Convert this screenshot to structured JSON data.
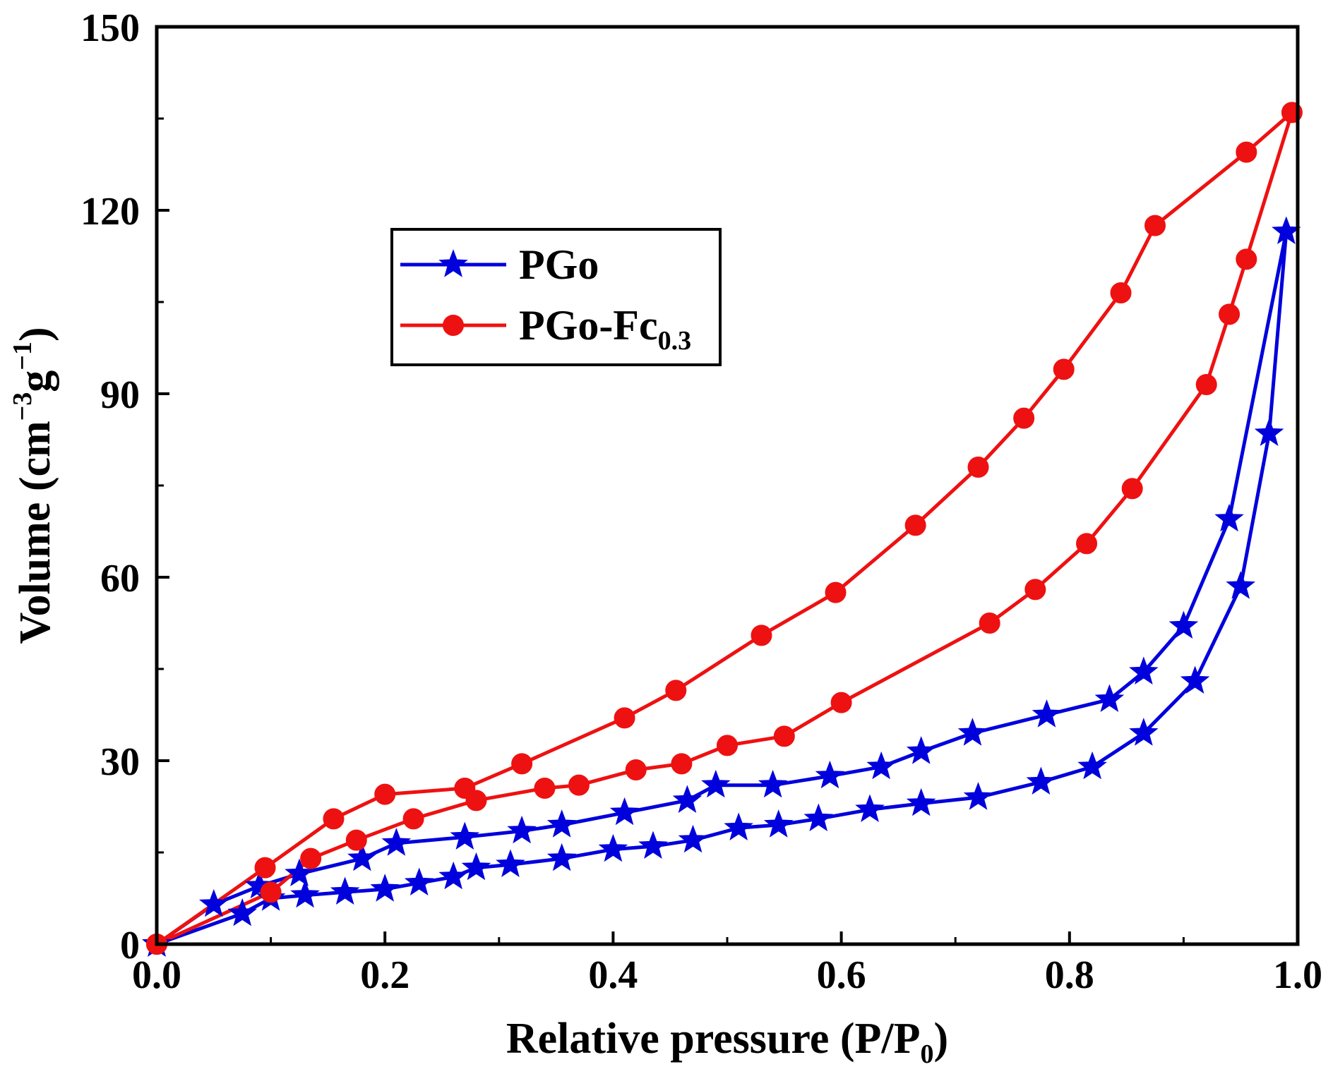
{
  "chart_data": {
    "type": "line",
    "title": "",
    "xlabel": "Relative pressure (P/P",
    "xlabel_sub": "0",
    "xlabel_end": ")",
    "ylabel": "Volume (cm",
    "ylabel_sup1": "−3",
    "ylabel_mid": "g",
    "ylabel_sup2": "−1",
    "ylabel_end": ")",
    "xlim": [
      0.0,
      1.0
    ],
    "ylim": [
      0,
      150
    ],
    "xticks": [
      "0.0",
      "0.2",
      "0.4",
      "0.6",
      "0.8",
      "1.0"
    ],
    "yticks": [
      "0",
      "30",
      "60",
      "90",
      "120",
      "150"
    ],
    "legend_position": "upper-left",
    "series": [
      {
        "name": "PGo",
        "name_sub": "",
        "color": "#0000dd",
        "marker": "star",
        "x": [
          0.0,
          0.075,
          0.1,
          0.13,
          0.165,
          0.2,
          0.23,
          0.26,
          0.28,
          0.31,
          0.355,
          0.4,
          0.435,
          0.47,
          0.51,
          0.545,
          0.58,
          0.625,
          0.67,
          0.72,
          0.775,
          0.82,
          0.865,
          0.91,
          0.95,
          0.975,
          0.99,
          0.94,
          0.9,
          0.865,
          0.835,
          0.78,
          0.715,
          0.67,
          0.635,
          0.59,
          0.54,
          0.49,
          0.465,
          0.41,
          0.355,
          0.32,
          0.27,
          0.21,
          0.18,
          0.125,
          0.09,
          0.05,
          0.0
        ],
        "y": [
          0,
          5,
          7.5,
          8,
          8.5,
          9,
          10,
          11,
          12.5,
          13,
          14,
          15.5,
          16,
          17,
          19,
          19.5,
          20.5,
          22,
          23,
          24,
          26.5,
          29,
          34.5,
          43,
          58.5,
          83.5,
          116.5,
          69.5,
          52,
          44.5,
          40,
          37.5,
          34.5,
          31.5,
          29,
          27.5,
          26,
          26,
          23.5,
          21.5,
          19.5,
          18.5,
          17.5,
          16.5,
          14,
          11.5,
          9.5,
          6.5,
          0
        ]
      },
      {
        "name": "PGo-Fc",
        "name_sub": "0.3",
        "color": "#ee1111",
        "marker": "circle",
        "x": [
          0.0,
          0.1,
          0.135,
          0.175,
          0.225,
          0.28,
          0.34,
          0.37,
          0.42,
          0.46,
          0.5,
          0.55,
          0.6,
          0.73,
          0.77,
          0.815,
          0.855,
          0.92,
          0.94,
          0.955,
          0.995,
          0.955,
          0.875,
          0.845,
          0.795,
          0.76,
          0.72,
          0.665,
          0.595,
          0.53,
          0.455,
          0.41,
          0.32,
          0.27,
          0.2,
          0.155,
          0.095,
          0.0
        ],
        "y": [
          0,
          8.5,
          14,
          17,
          20.5,
          23.5,
          25.5,
          26,
          28.5,
          29.5,
          32.5,
          34,
          39.5,
          52.5,
          58,
          65.5,
          74.5,
          91.5,
          103,
          112,
          136,
          129.5,
          117.5,
          106.5,
          94,
          86,
          78,
          68.5,
          57.5,
          50.5,
          41.5,
          37,
          29.5,
          25.5,
          24.5,
          20.5,
          12.5,
          0
        ]
      }
    ]
  }
}
